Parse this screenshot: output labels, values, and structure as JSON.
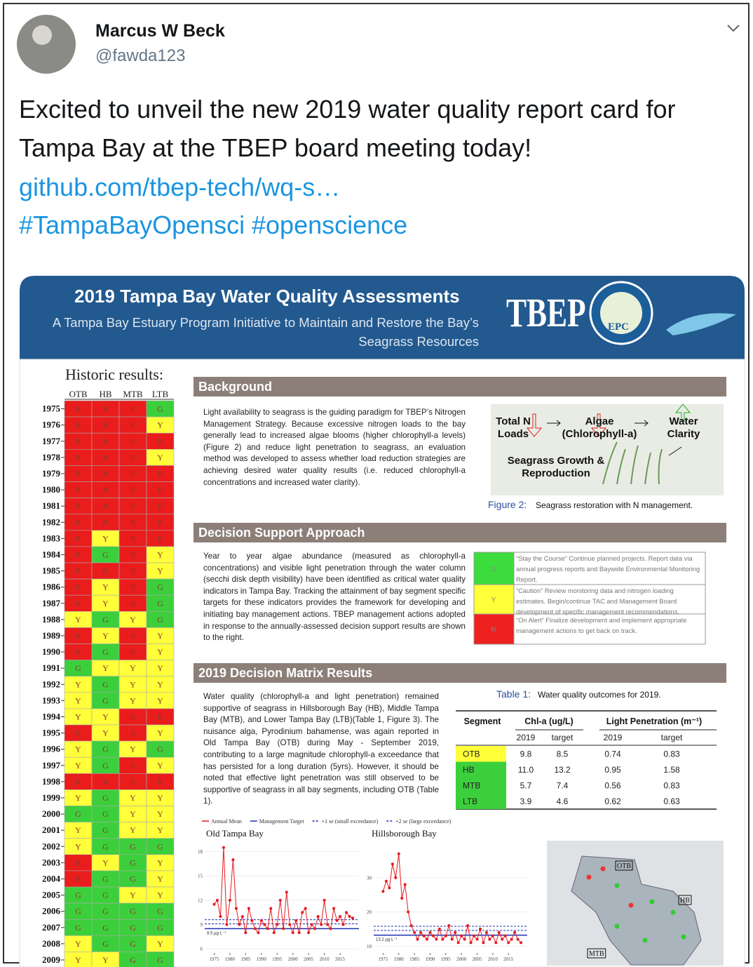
{
  "tweet": {
    "author": "Marcus W Beck",
    "handle": "@fawda123",
    "text": "Excited to unveil the new 2019 water quality report card for Tampa Bay at the TBEP board meeting today!",
    "link": "github.com/tbep-tech/wq-s…",
    "hashtags": [
      "#TampaBayOpensci",
      "#openscience"
    ]
  },
  "report": {
    "title": "2019 Tampa Bay Water Quality Assessments",
    "subtitle": [
      "A Tampa Bay Estuary Program Initiative to Maintain and Restore the Bay’s",
      "Seagrass Resources"
    ],
    "logos": [
      "TBEP",
      "EPC"
    ],
    "historic": {
      "title": "Historic results:",
      "segments": [
        "OTB",
        "HB",
        "MTB",
        "LTB"
      ],
      "colors": {
        "R": "#ea1c1c",
        "Y": "#ffff3a",
        "G": "#3ccf3c"
      },
      "years": [
        "1975",
        "1976",
        "1977",
        "1978",
        "1979",
        "1980",
        "1981",
        "1982",
        "1983",
        "1984",
        "1985",
        "1986",
        "1987",
        "1988",
        "1989",
        "1990",
        "1991",
        "1992",
        "1993",
        "1994",
        "1995",
        "1996",
        "1997",
        "1998",
        "1999",
        "2000",
        "2001",
        "2002",
        "2003",
        "2004",
        "2005",
        "2006",
        "2007",
        "2008",
        "2009"
      ],
      "results": [
        [
          "R",
          "R",
          "R",
          "G"
        ],
        [
          "R",
          "R",
          "R",
          "Y"
        ],
        [
          "R",
          "R",
          "R",
          "R"
        ],
        [
          "R",
          "R",
          "R",
          "Y"
        ],
        [
          "R",
          "R",
          "R",
          "R"
        ],
        [
          "R",
          "R",
          "R",
          "R"
        ],
        [
          "R",
          "R",
          "R",
          "R"
        ],
        [
          "R",
          "R",
          "R",
          "R"
        ],
        [
          "R",
          "Y",
          "R",
          "R"
        ],
        [
          "R",
          "G",
          "R",
          "Y"
        ],
        [
          "R",
          "R",
          "R",
          "Y"
        ],
        [
          "R",
          "Y",
          "R",
          "G"
        ],
        [
          "R",
          "Y",
          "R",
          "G"
        ],
        [
          "Y",
          "G",
          "Y",
          "G"
        ],
        [
          "R",
          "Y",
          "R",
          "Y"
        ],
        [
          "R",
          "G",
          "R",
          "Y"
        ],
        [
          "G",
          "Y",
          "Y",
          "Y"
        ],
        [
          "Y",
          "G",
          "Y",
          "Y"
        ],
        [
          "Y",
          "G",
          "Y",
          "Y"
        ],
        [
          "Y",
          "Y",
          "R",
          "R"
        ],
        [
          "R",
          "Y",
          "R",
          "Y"
        ],
        [
          "Y",
          "G",
          "Y",
          "G"
        ],
        [
          "Y",
          "G",
          "R",
          "Y"
        ],
        [
          "R",
          "R",
          "R",
          "R"
        ],
        [
          "Y",
          "G",
          "Y",
          "Y"
        ],
        [
          "G",
          "G",
          "Y",
          "Y"
        ],
        [
          "Y",
          "G",
          "Y",
          "Y"
        ],
        [
          "Y",
          "G",
          "G",
          "G"
        ],
        [
          "R",
          "Y",
          "G",
          "Y"
        ],
        [
          "R",
          "G",
          "G",
          "Y"
        ],
        [
          "G",
          "G",
          "Y",
          "Y"
        ],
        [
          "G",
          "G",
          "G",
          "G"
        ],
        [
          "G",
          "G",
          "G",
          "G"
        ],
        [
          "Y",
          "G",
          "G",
          "Y"
        ],
        [
          "Y",
          "Y",
          "G",
          "G"
        ]
      ]
    },
    "sections": [
      {
        "heading": "Background",
        "text": "Light availability to seagrass is the guiding paradigm for TBEP’s Nitrogen Management Strategy.  Because excessive nitrogen loads to the bay generally lead to increased algae blooms (higher chlorophyll-a levels) (Figure 2) and reduce light penetration to seagrass, an evaluation method was developed to assess whether load reduction strategies are achieving desired water quality results (i.e. reduced chlorophyll-a concentrations and increased water clarity)."
      },
      {
        "heading": "Decision Support Approach",
        "text": "Year to year algae abundance (measured as chlorophyll-a concentrations) and visible light penetration through the water column (secchi disk depth visibility) have been identified as critical water quality indicators in Tampa Bay.  Tracking the attainment of bay segment specific targets for these indicators provides the framework for developing and initiating bay management actions. TBEP management actions adopted in response to the annually-assessed decision support results are shown to the right."
      },
      {
        "heading": "2019 Decision Matrix Results",
        "text": "Water quality (chlorophyll-a and light penetration) remained supportive of seagrass in Hillsborough Bay (HB), Middle Tampa Bay (MTB), and Lower Tampa Bay (LTB)(Table 1, Figure 3).  The nuisance alga, Pyrodinium bahamense, was again reported in Old Tampa Bay (OTB) during May - September 2019, contributing to a large magnitude chlorophyll-a exceedance that has persisted for a long duration (5yrs).  However, it should be noted that effective light penetration was still observed to be supportive of seagrass in all bay segments, including OTB (Table 1)."
      }
    ],
    "figure2": {
      "nodes": [
        "Total N Loads",
        "Algae (Chlorophyll-a)",
        "Water Clarity",
        "Seagrass Growth & Reproduction"
      ],
      "caption_label": "Figure 2:",
      "caption": "Seagrass restoration with N management."
    },
    "decision_key": [
      {
        "code": "G",
        "color": "#3ddc3d",
        "text": "“Stay the Course” Continue planned projects. Report data via annual progress reports and Baywide Environmental Monitoring Report."
      },
      {
        "code": "Y",
        "color": "#ffff3a",
        "text": "“Caution” Review monitoring data and nitrogen loading estimates. Begin/continue TAC and Management Board development of specific management recommendations."
      },
      {
        "code": "R",
        "color": "#ee2020",
        "text": "“On Alert” Finalize development and implement appropriate management actions to get back on track."
      }
    ],
    "table": {
      "caption_label": "Table 1:",
      "caption": "Water quality outcomes for 2019.",
      "headers": [
        "Segment",
        "Chl-a (ug/L)",
        "Light Penetration (m⁻¹)"
      ],
      "subheaders": [
        "2019",
        "target",
        "2019",
        "target"
      ],
      "rows": [
        [
          "OTB",
          "9.8",
          "8.5",
          "0.74",
          "0.83"
        ],
        [
          "HB",
          "11.0",
          "13.2",
          "0.95",
          "1.58"
        ],
        [
          "MTB",
          "5.7",
          "7.4",
          "0.56",
          "0.83"
        ],
        [
          "LTB",
          "3.9",
          "4.6",
          "0.62",
          "0.63"
        ]
      ],
      "segment_colors": [
        "#ffff3a",
        "#3ccf3c",
        "#3ccf3c",
        "#3ccf3c"
      ]
    },
    "chart_legend": [
      {
        "name": "Annual Mean",
        "color": "#e8191e"
      },
      {
        "name": "Management Target",
        "color": "#1a2fb0"
      },
      {
        "name": "+1 se (small exceedance)",
        "color": "#1a2fb0"
      },
      {
        "name": "+2 se (large exceedance)",
        "color": "#1a2fb0"
      }
    ],
    "charts": [
      {
        "type": "line",
        "title": "Old Tampa Bay",
        "xlim": [
          1972,
          2021
        ],
        "xticks": [
          1975,
          1980,
          1985,
          1990,
          1995,
          2000,
          2005,
          2010,
          2015
        ],
        "ylim": [
          5.5,
          19
        ],
        "yticks": [
          6,
          9,
          12,
          15,
          18
        ],
        "target": 8.5,
        "target_label": "8.5 µg·L⁻¹",
        "se1": 9.1,
        "se2": 9.6,
        "x": [
          1975,
          1976,
          1977,
          1978,
          1979,
          1980,
          1981,
          1982,
          1983,
          1984,
          1985,
          1986,
          1987,
          1988,
          1989,
          1990,
          1991,
          1992,
          1993,
          1994,
          1995,
          1996,
          1997,
          1998,
          1999,
          2000,
          2001,
          2002,
          2003,
          2004,
          2005,
          2006,
          2007,
          2008,
          2009,
          2010,
          2011,
          2012,
          2013,
          2014,
          2015,
          2016,
          2017,
          2018,
          2019
        ],
        "values": [
          11.5,
          12,
          10,
          18.5,
          9,
          12,
          17,
          11,
          9,
          10,
          8,
          11,
          9.5,
          8.5,
          8,
          9.5,
          9,
          8.5,
          11,
          8,
          9,
          12,
          8.5,
          13,
          9,
          8,
          9.5,
          8,
          10.5,
          11,
          8,
          9,
          8.5,
          10,
          9,
          12,
          9,
          8.5,
          11,
          9.5,
          10,
          9,
          10.5,
          10,
          9.8
        ]
      },
      {
        "type": "line",
        "title": "Hillsborough Bay",
        "xlim": [
          1972,
          2021
        ],
        "xticks": [
          1975,
          1980,
          1985,
          1990,
          1995,
          2000,
          2005,
          2010,
          2015
        ],
        "ylim": [
          8,
          40
        ],
        "yticks": [
          10,
          20,
          30
        ],
        "target": 13.2,
        "target_label": "13.2 µg·L⁻¹",
        "se1": 14.6,
        "se2": 15.8,
        "x": [
          1975,
          1976,
          1977,
          1978,
          1979,
          1980,
          1981,
          1982,
          1983,
          1984,
          1985,
          1986,
          1987,
          1988,
          1989,
          1990,
          1991,
          1992,
          1993,
          1994,
          1995,
          1996,
          1997,
          1998,
          1999,
          2000,
          2001,
          2002,
          2003,
          2004,
          2005,
          2006,
          2007,
          2008,
          2009,
          2010,
          2011,
          2012,
          2013,
          2014,
          2015,
          2016,
          2017,
          2018,
          2019
        ],
        "values": [
          26,
          29,
          27,
          34,
          30,
          37,
          24,
          28,
          20,
          16,
          14,
          12,
          14,
          13,
          12,
          14,
          13,
          12,
          15,
          12,
          13,
          16,
          12,
          14,
          11,
          13,
          12,
          16,
          11,
          13,
          12,
          15,
          11,
          14,
          12,
          13,
          11,
          14,
          12,
          13,
          11,
          12,
          14,
          12,
          11
        ]
      }
    ],
    "map": {
      "labels": [
        "OTB",
        "HB",
        "MTB"
      ]
    }
  }
}
